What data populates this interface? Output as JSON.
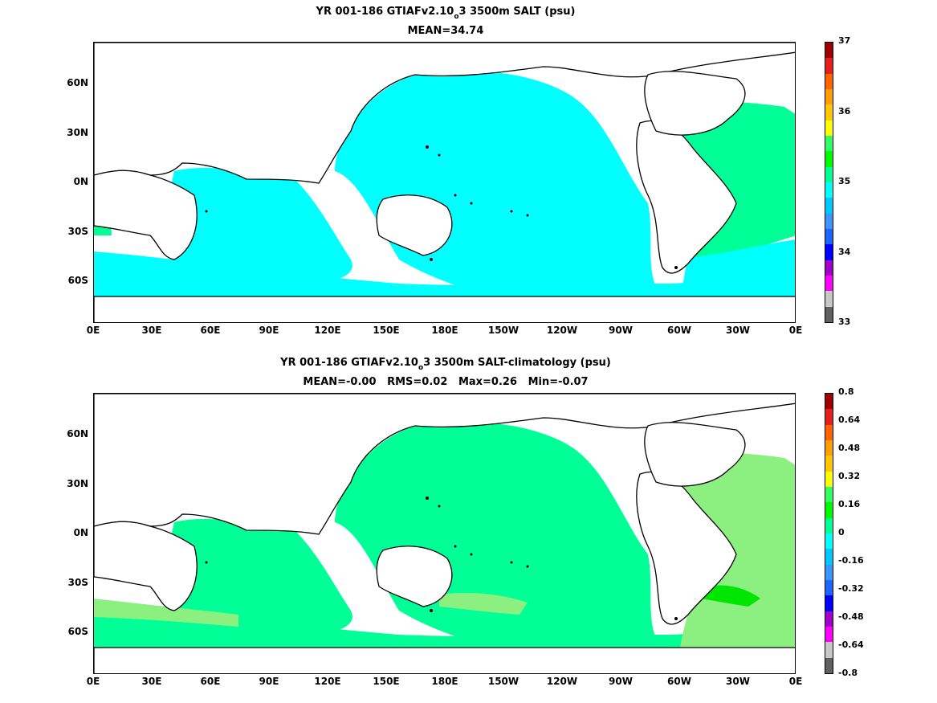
{
  "panels": [
    {
      "title_main": "YR 001-186 GTIAFv2.10",
      "title_sub": "o",
      "title_rest": "3 3500m SALT (psu)",
      "stats": "MEAN=34.74",
      "colorbar": {
        "colors": [
          "#606060",
          "#c8c8c8",
          "#ff00ff",
          "#a000c8",
          "#0000ff",
          "#1e64ff",
          "#3c96ff",
          "#00c8ff",
          "#00ffff",
          "#00ff96",
          "#00fa00",
          "#32ff64",
          "#ffff00",
          "#ffc800",
          "#ffa000",
          "#ff6400",
          "#e61e1e",
          "#a00000"
        ],
        "labels": [
          "37",
          "36",
          "35",
          "34",
          "33"
        ]
      }
    },
    {
      "title_main": "YR 001-186 GTIAFv2.10",
      "title_sub": "o",
      "title_rest": "3 3500m SALT-climatology (psu)",
      "stats": "MEAN=-0.00   RMS=0.02   Max=0.26   Min=-0.07",
      "colorbar": {
        "colors": [
          "#606060",
          "#c8c8c8",
          "#ff00ff",
          "#a000c8",
          "#0000ff",
          "#1e64ff",
          "#3c96ff",
          "#00c8ff",
          "#00ffff",
          "#00ff96",
          "#00fa00",
          "#32ff64",
          "#ffff00",
          "#ffc800",
          "#ffa000",
          "#ff6400",
          "#e61e1e",
          "#a00000"
        ],
        "labels": [
          "0.8",
          "0.64",
          "0.48",
          "0.32",
          "0.16",
          "0",
          "-0.16",
          "-0.32",
          "-0.48",
          "-0.64",
          "-0.8"
        ]
      }
    }
  ],
  "axes": {
    "lat_labels": [
      "60N",
      "30N",
      "0N",
      "30S",
      "60S"
    ],
    "lon_labels": [
      "0E",
      "30E",
      "60E",
      "90E",
      "120E",
      "150E",
      "180E",
      "150W",
      "120W",
      "90W",
      "60W",
      "30W",
      "0E"
    ]
  },
  "colors": {
    "top_fill": "#00ffff",
    "top_atlantic": "#00ff96",
    "top_high": "#64ff64",
    "bot_fill": "#00ff96",
    "bot_light": "#8cf080",
    "bot_high": "#00e600",
    "land": "#ffffff",
    "coast": "#000000"
  }
}
